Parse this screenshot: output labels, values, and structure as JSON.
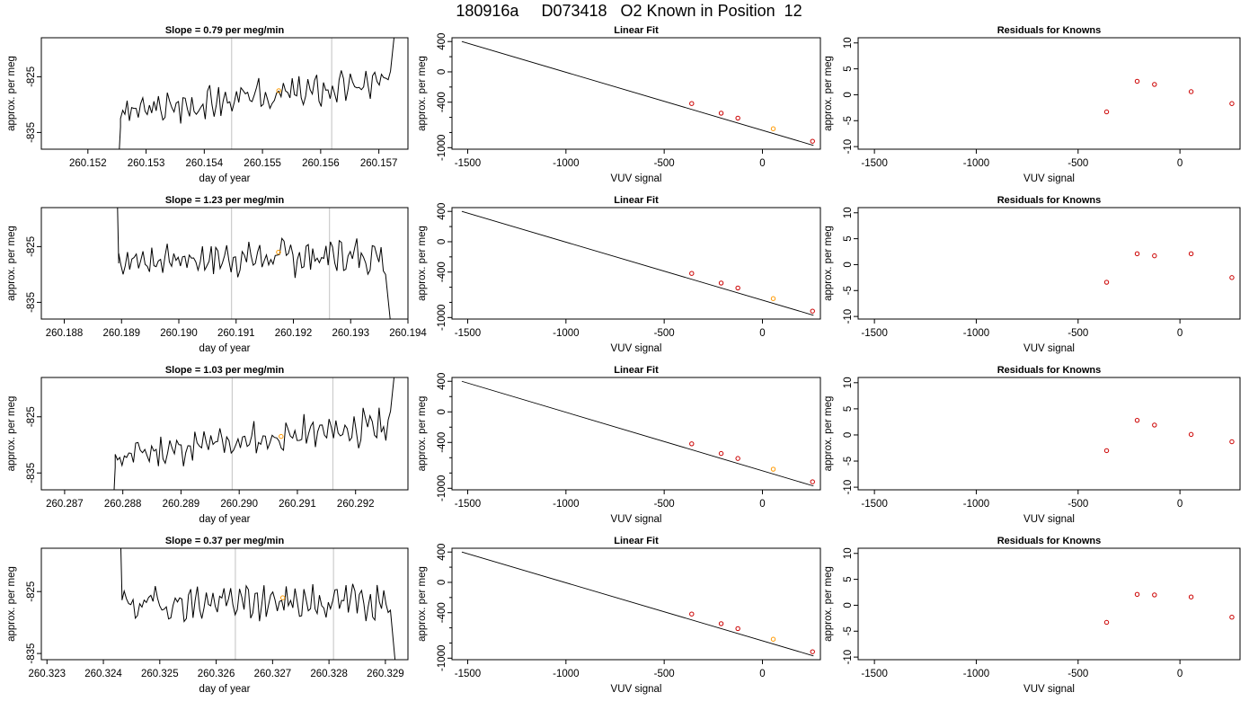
{
  "figure": {
    "title": "180916a     D073418   O2 Known in Position  12"
  },
  "colors": {
    "line": "#000000",
    "known_point": "#cc0000",
    "highlight_point": "#ff9900",
    "marker_line": "#cccccc",
    "frame": "#000000"
  },
  "chart_data": [
    {
      "type": "line",
      "row": 1,
      "title": "Slope =  0.79  per meg/min",
      "xlabel": "day of year",
      "ylabel": "approx. per meg",
      "xlim": [
        260.1512,
        260.1575
      ],
      "ylim": [
        -838,
        -818
      ],
      "xticks": [
        "260.152",
        "260.153",
        "260.154",
        "260.155",
        "260.156",
        "260.157"
      ],
      "xtick_values": [
        260.152,
        260.153,
        260.154,
        260.155,
        260.156,
        260.157
      ],
      "yticks": [
        "-825",
        "-835"
      ],
      "ytick_values": [
        -825,
        -835
      ],
      "vlines": [
        260.15447,
        260.15619
      ],
      "highlight": {
        "x": 260.15528,
        "y": -827.5
      },
      "series": [
        {
          "x_start": 260.15256,
          "x_end": 260.15716,
          "trend_start": -831.5,
          "trend_end": -826.0,
          "lead_in": [
            -838,
            -834
          ],
          "lead_out": [
            -824,
            -816
          ],
          "seed": 3,
          "amp": 2.4
        }
      ]
    },
    {
      "type": "scatter",
      "row": 1,
      "title": "Linear Fit",
      "xlabel": "VUV signal",
      "ylabel": "approx. per meg",
      "xlim": [
        -1580,
        295
      ],
      "ylim": [
        -1020,
        450
      ],
      "xticks": [
        "-1500",
        "-1000",
        "-500",
        "0"
      ],
      "xtick_values": [
        -1500,
        -1000,
        -500,
        0
      ],
      "yticks": [
        "400",
        "0",
        "-400",
        "-1000"
      ],
      "ytick_values": [
        400,
        0,
        -400,
        -1000
      ],
      "fit_line": {
        "x": [
          -1530,
          260
        ],
        "y": [
          400,
          -970
        ]
      },
      "points": {
        "x": [
          -360,
          -210,
          -125,
          55,
          255
        ],
        "y": [
          -418,
          -545,
          -610,
          -750,
          -915
        ]
      },
      "highlight": {
        "x": 55,
        "y": -750
      }
    },
    {
      "type": "scatter",
      "row": 1,
      "title": "Residuals for Knowns",
      "xlabel": "VUV signal",
      "ylabel": "approx. per meg",
      "xlim": [
        -1580,
        295
      ],
      "ylim": [
        -10.5,
        11
      ],
      "xticks": [
        "-1500",
        "-1000",
        "-500",
        "0"
      ],
      "xtick_values": [
        -1500,
        -1000,
        -500,
        0
      ],
      "yticks": [
        "10",
        "5",
        "0",
        "-5",
        "-10"
      ],
      "ytick_values": [
        10,
        5,
        0,
        -5,
        -10
      ],
      "points": {
        "x": [
          -360,
          -210,
          -125,
          55,
          255
        ],
        "y": [
          -3.3,
          2.6,
          2.0,
          0.6,
          -1.7
        ]
      }
    },
    {
      "type": "line",
      "row": 2,
      "title": "Slope =  1.23  per meg/min",
      "xlabel": "day of year",
      "ylabel": "approx. per meg",
      "xlim": [
        260.1876,
        260.194
      ],
      "ylim": [
        -838,
        -818
      ],
      "xticks": [
        "260.188",
        "260.189",
        "260.190",
        "260.191",
        "260.192",
        "260.193",
        "260.194"
      ],
      "xtick_values": [
        260.188,
        260.189,
        260.19,
        260.191,
        260.192,
        260.193,
        260.194
      ],
      "yticks": [
        "-825",
        "-835"
      ],
      "ytick_values": [
        -825,
        -835
      ],
      "vlines": [
        260.19092,
        260.19263
      ],
      "highlight": {
        "x": 260.19174,
        "y": -826.0
      },
      "series": [
        {
          "x_start": 260.18895,
          "x_end": 260.19357,
          "trend_start": -827.5,
          "trend_end": -826.5,
          "lead_in": [
            -818,
            -828
          ],
          "lead_out": [
            -830,
            -838
          ],
          "seed": 7,
          "amp": 2.6
        }
      ]
    },
    {
      "type": "scatter",
      "row": 2,
      "title": "Linear Fit",
      "xlabel": "VUV signal",
      "ylabel": "approx. per meg",
      "xlim": [
        -1580,
        295
      ],
      "ylim": [
        -1020,
        450
      ],
      "xticks": [
        "-1500",
        "-1000",
        "-500",
        "0"
      ],
      "xtick_values": [
        -1500,
        -1000,
        -500,
        0
      ],
      "yticks": [
        "400",
        "0",
        "-400",
        "-1000"
      ],
      "ytick_values": [
        400,
        0,
        -400,
        -1000
      ],
      "fit_line": {
        "x": [
          -1530,
          260
        ],
        "y": [
          400,
          -970
        ]
      },
      "points": {
        "x": [
          -360,
          -210,
          -125,
          55,
          255
        ],
        "y": [
          -418,
          -545,
          -610,
          -750,
          -915
        ]
      },
      "highlight": {
        "x": 55,
        "y": -750
      }
    },
    {
      "type": "scatter",
      "row": 2,
      "title": "Residuals for Knowns",
      "xlabel": "VUV signal",
      "ylabel": "approx. per meg",
      "xlim": [
        -1580,
        295
      ],
      "ylim": [
        -10.5,
        11
      ],
      "xticks": [
        "-1500",
        "-1000",
        "-500",
        "0"
      ],
      "xtick_values": [
        -1500,
        -1000,
        -500,
        0
      ],
      "yticks": [
        "10",
        "5",
        "0",
        "-5",
        "-10"
      ],
      "ytick_values": [
        10,
        5,
        0,
        -5,
        -10
      ],
      "points": {
        "x": [
          -360,
          -210,
          -125,
          55,
          255
        ],
        "y": [
          -3.4,
          2.1,
          1.7,
          2.1,
          -2.5
        ]
      }
    },
    {
      "type": "line",
      "row": 3,
      "title": "Slope =  1.03  per meg/min",
      "xlabel": "day of year",
      "ylabel": "approx. per meg",
      "xlim": [
        260.2866,
        260.2929
      ],
      "ylim": [
        -838,
        -818
      ],
      "xticks": [
        "260.287",
        "260.288",
        "260.289",
        "260.290",
        "260.291",
        "260.292"
      ],
      "xtick_values": [
        260.287,
        260.288,
        260.289,
        260.29,
        260.291,
        260.292
      ],
      "yticks": [
        "-825",
        "-835"
      ],
      "ytick_values": [
        -825,
        -835
      ],
      "vlines": [
        260.28988,
        260.29161
      ],
      "highlight": {
        "x": 260.29072,
        "y": -828.5
      },
      "series": [
        {
          "x_start": 260.28787,
          "x_end": 260.29256,
          "trend_start": -832.0,
          "trend_end": -826.5,
          "lead_in": [
            -838,
            -834
          ],
          "lead_out": [
            -824,
            -816
          ],
          "seed": 11,
          "amp": 2.5
        }
      ]
    },
    {
      "type": "scatter",
      "row": 3,
      "title": "Linear Fit",
      "xlabel": "VUV signal",
      "ylabel": "approx. per meg",
      "xlim": [
        -1580,
        295
      ],
      "ylim": [
        -1020,
        450
      ],
      "xticks": [
        "-1500",
        "-1000",
        "-500",
        "0"
      ],
      "xtick_values": [
        -1500,
        -1000,
        -500,
        0
      ],
      "yticks": [
        "400",
        "0",
        "-400",
        "-1000"
      ],
      "ytick_values": [
        400,
        0,
        -400,
        -1000
      ],
      "fit_line": {
        "x": [
          -1530,
          260
        ],
        "y": [
          400,
          -970
        ]
      },
      "points": {
        "x": [
          -360,
          -210,
          -125,
          55,
          255
        ],
        "y": [
          -418,
          -545,
          -610,
          -750,
          -915
        ]
      },
      "highlight": {
        "x": 55,
        "y": -750
      }
    },
    {
      "type": "scatter",
      "row": 3,
      "title": "Residuals for Knowns",
      "xlabel": "VUV signal",
      "ylabel": "approx. per meg",
      "xlim": [
        -1580,
        295
      ],
      "ylim": [
        -10.5,
        11
      ],
      "xticks": [
        "-1500",
        "-1000",
        "-500",
        "0"
      ],
      "xtick_values": [
        -1500,
        -1000,
        -500,
        0
      ],
      "yticks": [
        "10",
        "5",
        "0",
        "-5",
        "-10"
      ],
      "ytick_values": [
        10,
        5,
        0,
        -5,
        -10
      ],
      "points": {
        "x": [
          -360,
          -210,
          -125,
          55,
          255
        ],
        "y": [
          -3.0,
          2.8,
          1.9,
          0.1,
          -1.3
        ]
      }
    },
    {
      "type": "line",
      "row": 4,
      "title": "Slope =  0.37  per meg/min",
      "xlabel": "day of year",
      "ylabel": "approx. per meg",
      "xlim": [
        260.3229,
        260.3294
      ],
      "ylim": [
        -836,
        -818
      ],
      "xticks": [
        "260.323",
        "260.324",
        "260.325",
        "260.326",
        "260.327",
        "260.328",
        "260.329"
      ],
      "xtick_values": [
        260.323,
        260.324,
        260.325,
        260.326,
        260.327,
        260.328,
        260.329
      ],
      "yticks": [
        "-825",
        "-835"
      ],
      "ytick_values": [
        -825,
        -835
      ],
      "vlines": [
        260.32634,
        260.32808
      ],
      "highlight": {
        "x": 260.32718,
        "y": -826.0
      },
      "series": [
        {
          "x_start": 260.32433,
          "x_end": 260.32905,
          "trend_start": -827.0,
          "trend_end": -826.5,
          "lead_in": [
            -818,
            -826
          ],
          "lead_out": [
            -828,
            -836
          ],
          "seed": 19,
          "amp": 2.4
        }
      ]
    },
    {
      "type": "scatter",
      "row": 4,
      "title": "Linear Fit",
      "xlabel": "VUV signal",
      "ylabel": "approx. per meg",
      "xlim": [
        -1580,
        295
      ],
      "ylim": [
        -1020,
        450
      ],
      "xticks": [
        "-1500",
        "-1000",
        "-500",
        "0"
      ],
      "xtick_values": [
        -1500,
        -1000,
        -500,
        0
      ],
      "yticks": [
        "400",
        "0",
        "-400",
        "-1000"
      ],
      "ytick_values": [
        400,
        0,
        -400,
        -1000
      ],
      "fit_line": {
        "x": [
          -1530,
          260
        ],
        "y": [
          400,
          -970
        ]
      },
      "points": {
        "x": [
          -360,
          -210,
          -125,
          55,
          255
        ],
        "y": [
          -418,
          -545,
          -610,
          -750,
          -915
        ]
      },
      "highlight": {
        "x": 55,
        "y": -750
      }
    },
    {
      "type": "scatter",
      "row": 4,
      "title": "Residuals for Knowns",
      "xlabel": "VUV signal",
      "ylabel": "approx. per meg",
      "xlim": [
        -1580,
        295
      ],
      "ylim": [
        -10.5,
        11
      ],
      "xticks": [
        "-1500",
        "-1000",
        "-500",
        "0"
      ],
      "xtick_values": [
        -1500,
        -1000,
        -500,
        0
      ],
      "yticks": [
        "10",
        "5",
        "0",
        "-5",
        "-10"
      ],
      "ytick_values": [
        10,
        5,
        0,
        -5,
        -10
      ],
      "points": {
        "x": [
          -360,
          -210,
          -125,
          55,
          255
        ],
        "y": [
          -3.3,
          2.1,
          2.0,
          1.6,
          -2.3
        ]
      }
    }
  ]
}
